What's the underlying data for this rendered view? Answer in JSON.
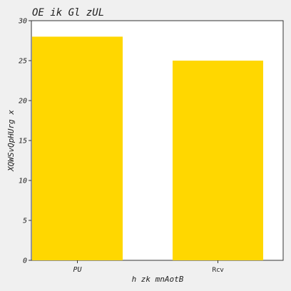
{
  "chart_data": {
    "type": "bar",
    "title": "OE ik Gl zUL",
    "xlabel": "h zk mnAotB",
    "ylabel": "XQWSvQpHUrg x",
    "categories": [
      "PU",
      "Rcv"
    ],
    "values": [
      28,
      25
    ],
    "ylim": [
      0,
      30
    ],
    "yticks": [
      0,
      5,
      10,
      15,
      20,
      25,
      30
    ],
    "grid": false,
    "colors": {
      "bar": "#ffd700",
      "plot_background": "#ffffff",
      "page_background": "#f0f0f0"
    }
  }
}
